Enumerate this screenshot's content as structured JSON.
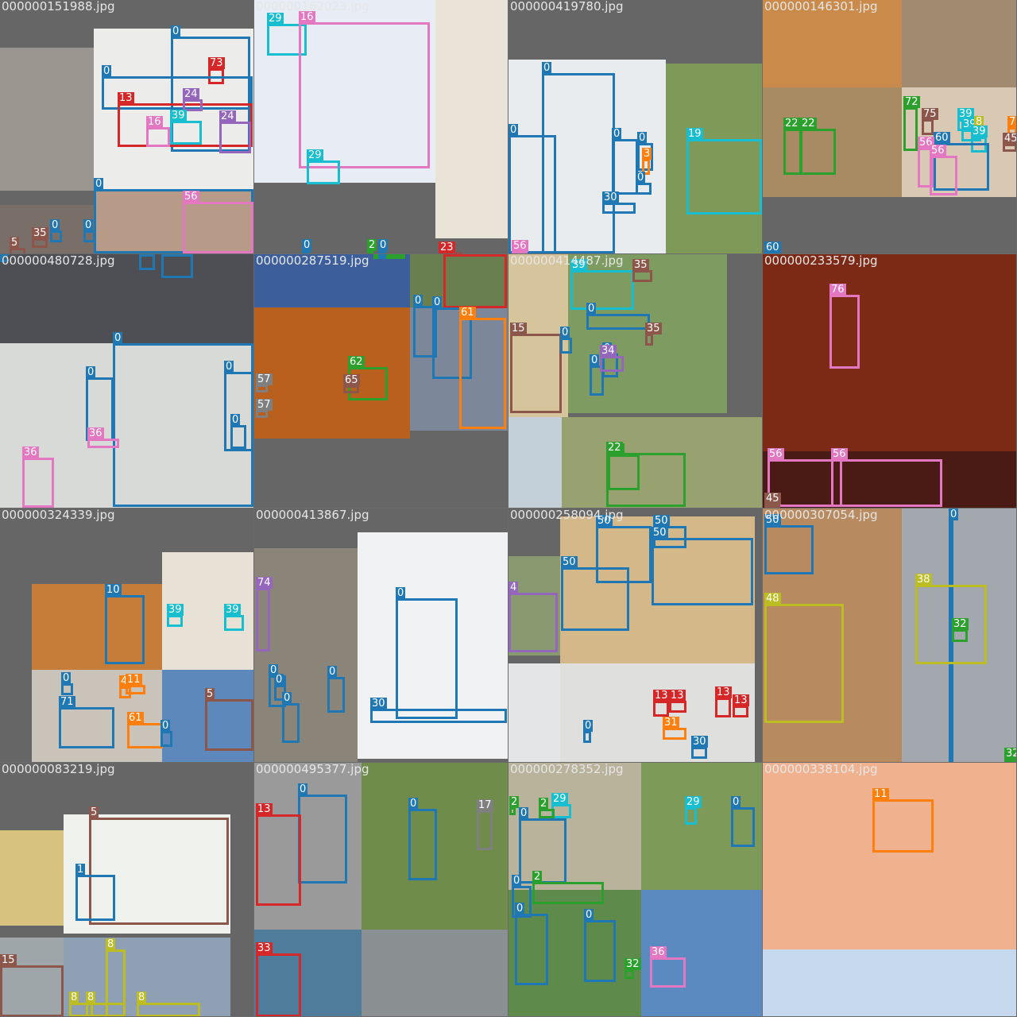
{
  "palette": {
    "0": "#1f77b4",
    "2": "#2ca02c",
    "3": "#ff7f0e",
    "4": "#9467bd",
    "5": "#8c564b",
    "7": "#ff7f0e",
    "8": "#bcbd22",
    "9": "#17becf",
    "10": "#1f77b4",
    "11": "#ff7f0e",
    "13": "#d62728",
    "15": "#8c564b",
    "16": "#e377c2",
    "17": "#7f7f7f",
    "19": "#17becf",
    "22": "#2ca02c",
    "23": "#d62728",
    "24": "#9467bd",
    "29": "#17becf",
    "30": "#1f77b4",
    "31": "#ff7f0e",
    "32": "#2ca02c",
    "33": "#d62728",
    "34": "#9467bd",
    "35": "#8c564b",
    "36": "#e377c2",
    "38": "#bcbd22",
    "39": "#17becf",
    "41": "#ff7f0e",
    "45": "#8c564b",
    "48": "#bcbd22",
    "50": "#1f77b4",
    "56": "#e377c2",
    "57": "#7f7f7f",
    "60": "#1f77b4",
    "61": "#ff7f0e",
    "62": "#2ca02c",
    "65": "#8c564b",
    "72": "#2ca02c",
    "73": "#d62728",
    "74": "#9467bd",
    "75": "#8c564b",
    "76": "#e377c2"
  },
  "tiles": [
    {
      "file": "000000151988.jpg",
      "images": [
        {
          "c": "#9a968f"
        },
        {
          "c": "#ececea"
        },
        {
          "c": "#7a6e68"
        },
        {
          "c": "#b89a88"
        }
      ],
      "boxes": [
        {
          "cls": "0"
        },
        {
          "cls": "73"
        },
        {
          "cls": "0"
        },
        {
          "cls": "13"
        },
        {
          "cls": "24"
        },
        {
          "cls": "16"
        },
        {
          "cls": "39"
        },
        {
          "cls": "24"
        },
        {
          "cls": "0"
        },
        {
          "cls": "56"
        },
        {
          "cls": "0"
        },
        {
          "cls": "0"
        },
        {
          "cls": "35"
        },
        {
          "cls": "5"
        }
      ]
    },
    {
      "file": "000000162023.jpg",
      "images": [
        {
          "c": "#e8ecf4"
        },
        {
          "c": "#e9e3d8"
        }
      ],
      "boxes": [
        {
          "cls": "29"
        },
        {
          "cls": "16"
        },
        {
          "cls": "29"
        },
        {
          "cls": "0"
        },
        {
          "cls": "2"
        },
        {
          "cls": "0"
        },
        {
          "cls": "23"
        }
      ]
    },
    {
      "file": "000000419780.jpg",
      "images": [
        {
          "c": "#e9ecef"
        },
        {
          "c": "#7f9a58"
        }
      ],
      "boxes": [
        {
          "cls": "0"
        },
        {
          "cls": "0"
        },
        {
          "cls": "0"
        },
        {
          "cls": "0"
        },
        {
          "cls": "3"
        },
        {
          "cls": "0"
        },
        {
          "cls": "30"
        },
        {
          "cls": "19"
        },
        {
          "cls": "56"
        }
      ]
    },
    {
      "file": "000000146301.jpg",
      "images": [
        {
          "c": "#c98a4a"
        },
        {
          "c": "#a08b70"
        },
        {
          "c": "#a88a63"
        },
        {
          "c": "#d9c8b4"
        }
      ],
      "boxes": [
        {
          "cls": "22"
        },
        {
          "cls": "22"
        },
        {
          "cls": "72"
        },
        {
          "cls": "75"
        },
        {
          "cls": "39"
        },
        {
          "cls": "39"
        },
        {
          "cls": "8"
        },
        {
          "cls": "39"
        },
        {
          "cls": "60"
        },
        {
          "cls": "56"
        },
        {
          "cls": "56"
        },
        {
          "cls": "7"
        },
        {
          "cls": "45"
        },
        {
          "cls": "60"
        }
      ]
    },
    {
      "file": "000000480728.jpg",
      "images": [
        {
          "c": "#4d4f55"
        },
        {
          "c": "#d8dad7"
        }
      ],
      "boxes": [
        {
          "cls": "0"
        },
        {
          "cls": "0"
        },
        {
          "cls": "0"
        },
        {
          "cls": "0"
        },
        {
          "cls": "0"
        },
        {
          "cls": "0"
        },
        {
          "cls": "36"
        },
        {
          "cls": "36"
        },
        {
          "cls": "0"
        }
      ]
    },
    {
      "file": "000000287519.jpg",
      "images": [
        {
          "c": "#3c5f9c"
        },
        {
          "c": "#b9601e"
        },
        {
          "c": "#6a7f4f"
        },
        {
          "c": "#7c8799"
        }
      ],
      "boxes": [
        {
          "cls": "2"
        },
        {
          "cls": "0"
        },
        {
          "cls": "23"
        },
        {
          "cls": "62"
        },
        {
          "cls": "65"
        },
        {
          "cls": "57"
        },
        {
          "cls": "57"
        },
        {
          "cls": "0"
        },
        {
          "cls": "0"
        },
        {
          "cls": "61"
        }
      ]
    },
    {
      "file": "000000414487.jpg",
      "images": [
        {
          "c": "#d6c49d"
        },
        {
          "c": "#7e9b61"
        },
        {
          "c": "#c3cfd8"
        },
        {
          "c": "#98a170"
        }
      ],
      "boxes": [
        {
          "cls": "39"
        },
        {
          "cls": "35"
        },
        {
          "cls": "15"
        },
        {
          "cls": "0"
        },
        {
          "cls": "0"
        },
        {
          "cls": "0"
        },
        {
          "cls": "0"
        },
        {
          "cls": "34"
        },
        {
          "cls": "35"
        },
        {
          "cls": "22"
        },
        {
          "cls": "22"
        }
      ]
    },
    {
      "file": "000000233579.jpg",
      "images": [
        {
          "c": "#7c2a16"
        },
        {
          "c": "#4a1a14"
        }
      ],
      "boxes": [
        {
          "cls": "76"
        },
        {
          "cls": "56"
        },
        {
          "cls": "56"
        },
        {
          "cls": "45"
        }
      ]
    },
    {
      "file": "000000324339.jpg",
      "images": [
        {
          "c": "#c77d3a"
        },
        {
          "c": "#e8e2d6"
        },
        {
          "c": "#c9c3b9"
        },
        {
          "c": "#5c88bb"
        }
      ],
      "boxes": [
        {
          "cls": "10"
        },
        {
          "cls": "39"
        },
        {
          "cls": "39"
        },
        {
          "cls": "0"
        },
        {
          "cls": "41"
        },
        {
          "cls": "11"
        },
        {
          "cls": "71"
        },
        {
          "cls": "61"
        },
        {
          "cls": "0"
        },
        {
          "cls": "5"
        }
      ]
    },
    {
      "file": "000000413867.jpg",
      "images": [
        {
          "c": "#8a8479"
        },
        {
          "c": "#f0f2f4"
        }
      ],
      "boxes": [
        {
          "cls": "74"
        },
        {
          "cls": "0"
        },
        {
          "cls": "30"
        },
        {
          "cls": "0"
        },
        {
          "cls": "0"
        },
        {
          "cls": "0"
        },
        {
          "cls": "0"
        }
      ]
    },
    {
      "file": "000000258094.jpg",
      "images": [
        {
          "c": "#d4b88a"
        },
        {
          "c": "#8a9a70"
        },
        {
          "c": "#e4e5e6"
        },
        {
          "c": "#dfdfdd"
        }
      ],
      "boxes": [
        {
          "cls": "50"
        },
        {
          "cls": "50"
        },
        {
          "cls": "50"
        },
        {
          "cls": "50"
        },
        {
          "cls": "4"
        },
        {
          "cls": "13"
        },
        {
          "cls": "13"
        },
        {
          "cls": "13"
        },
        {
          "cls": "13"
        },
        {
          "cls": "31"
        },
        {
          "cls": "30"
        },
        {
          "cls": "0"
        }
      ]
    },
    {
      "file": "000000307054.jpg",
      "images": [
        {
          "c": "#b88a5f"
        },
        {
          "c": "#a2a8ad"
        }
      ],
      "boxes": [
        {
          "cls": "50"
        },
        {
          "cls": "48"
        },
        {
          "cls": "0"
        },
        {
          "cls": "38"
        },
        {
          "cls": "32"
        },
        {
          "cls": "32"
        }
      ]
    },
    {
      "file": "000000083219.jpg",
      "images": [
        {
          "c": "#d8c280"
        },
        {
          "c": "#eef1ec"
        },
        {
          "c": "#9fa6a9"
        },
        {
          "c": "#8fa0b5"
        }
      ],
      "boxes": [
        {
          "cls": "5"
        },
        {
          "cls": "1"
        },
        {
          "cls": "15"
        },
        {
          "cls": "8"
        },
        {
          "cls": "8"
        },
        {
          "cls": "8"
        },
        {
          "cls": "8"
        }
      ]
    },
    {
      "file": "000000495377.jpg",
      "images": [
        {
          "c": "#9a9a9a"
        },
        {
          "c": "#6f8c4a"
        },
        {
          "c": "#4f7c9a"
        },
        {
          "c": "#8a8f92"
        }
      ],
      "boxes": [
        {
          "cls": "0"
        },
        {
          "cls": "13"
        },
        {
          "cls": "0"
        },
        {
          "cls": "17"
        },
        {
          "cls": "33"
        }
      ]
    },
    {
      "file": "000000278352.jpg",
      "images": [
        {
          "c": "#b9b39c"
        },
        {
          "c": "#7e9a58"
        },
        {
          "c": "#5e8a4b"
        },
        {
          "c": "#5a8ac0"
        }
      ],
      "boxes": [
        {
          "cls": "2"
        },
        {
          "cls": "29"
        },
        {
          "cls": "2"
        },
        {
          "cls": "0"
        },
        {
          "cls": "29"
        },
        {
          "cls": "0"
        },
        {
          "cls": "0"
        },
        {
          "cls": "2"
        },
        {
          "cls": "0"
        },
        {
          "cls": "0"
        },
        {
          "cls": "32"
        },
        {
          "cls": "36"
        }
      ]
    },
    {
      "file": "000000338104.jpg",
      "images": [
        {
          "c": "#f0b28e"
        },
        {
          "c": "#c6d8ee"
        }
      ],
      "boxes": [
        {
          "cls": "11"
        }
      ]
    }
  ]
}
